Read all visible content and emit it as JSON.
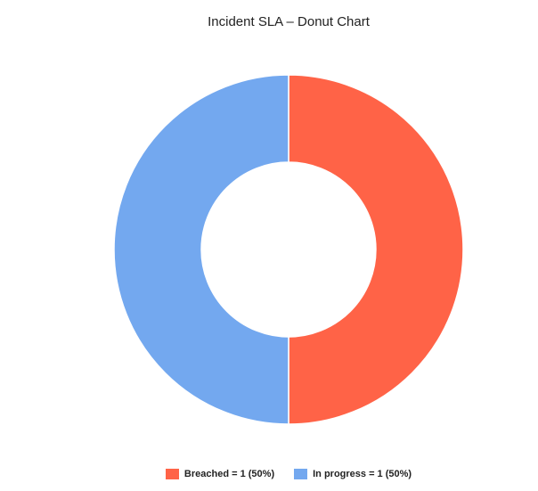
{
  "chart_data": {
    "type": "pie",
    "variant": "donut",
    "title": "Incident SLA – Donut Chart",
    "categories": [
      "Breached",
      "In progress"
    ],
    "values": [
      1,
      1
    ],
    "percentages": [
      50,
      50
    ],
    "colors": [
      "#ff6347",
      "#73a8ef"
    ],
    "legend_labels": [
      "Breached = 1 (50%)",
      "In progress = 1 (50%)"
    ],
    "legend_position": "bottom"
  }
}
